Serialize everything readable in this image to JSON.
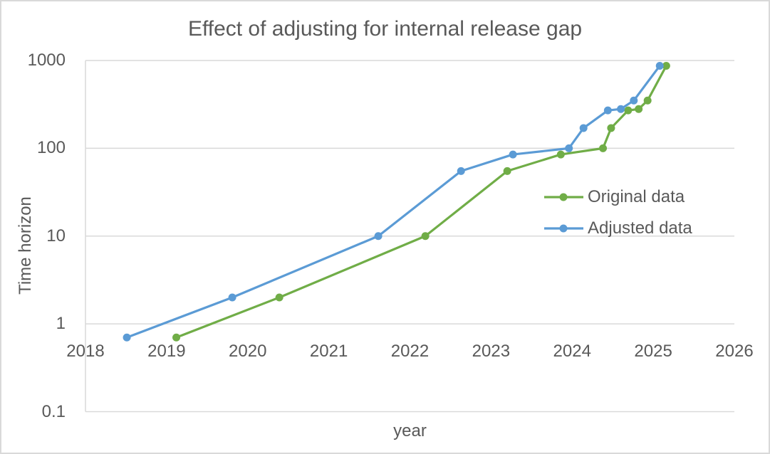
{
  "chart_data": {
    "type": "line",
    "title": "Effect of adjusting for internal release gap",
    "xlabel": "year",
    "ylabel": "Time horizon",
    "x_axis": {
      "min": 2018,
      "max": 2026,
      "ticks": [
        2018,
        2019,
        2020,
        2021,
        2022,
        2023,
        2024,
        2025,
        2026
      ]
    },
    "y_axis": {
      "scale": "log",
      "min": 0.1,
      "max": 1000,
      "ticks": [
        1000,
        100,
        10,
        1,
        0.1
      ],
      "tick_labels": [
        "1000",
        "100",
        "10",
        "1",
        "0.1"
      ]
    },
    "grid": "horizontal-only",
    "legend_position": "inside-right",
    "series": [
      {
        "name": "Original data",
        "color": "#70AD47",
        "points": [
          [
            2019.12,
            0.7
          ],
          [
            2020.39,
            2
          ],
          [
            2022.19,
            10
          ],
          [
            2023.2,
            55
          ],
          [
            2023.86,
            85
          ],
          [
            2024.38,
            100
          ],
          [
            2024.48,
            170
          ],
          [
            2024.69,
            270
          ],
          [
            2024.82,
            280
          ],
          [
            2024.93,
            350
          ],
          [
            2025.16,
            870
          ]
        ]
      },
      {
        "name": "Adjusted data",
        "color": "#5B9BD5",
        "points": [
          [
            2018.51,
            0.7
          ],
          [
            2019.81,
            2
          ],
          [
            2021.61,
            10
          ],
          [
            2022.63,
            55
          ],
          [
            2023.27,
            85
          ],
          [
            2023.96,
            100
          ],
          [
            2024.14,
            170
          ],
          [
            2024.44,
            270
          ],
          [
            2024.6,
            280
          ],
          [
            2024.76,
            350
          ],
          [
            2025.08,
            870
          ]
        ]
      }
    ]
  },
  "colors": {
    "text": "#595959",
    "gridline": "#D9D9D9",
    "background": "#FFFFFF",
    "border": "#D9D9D9"
  }
}
